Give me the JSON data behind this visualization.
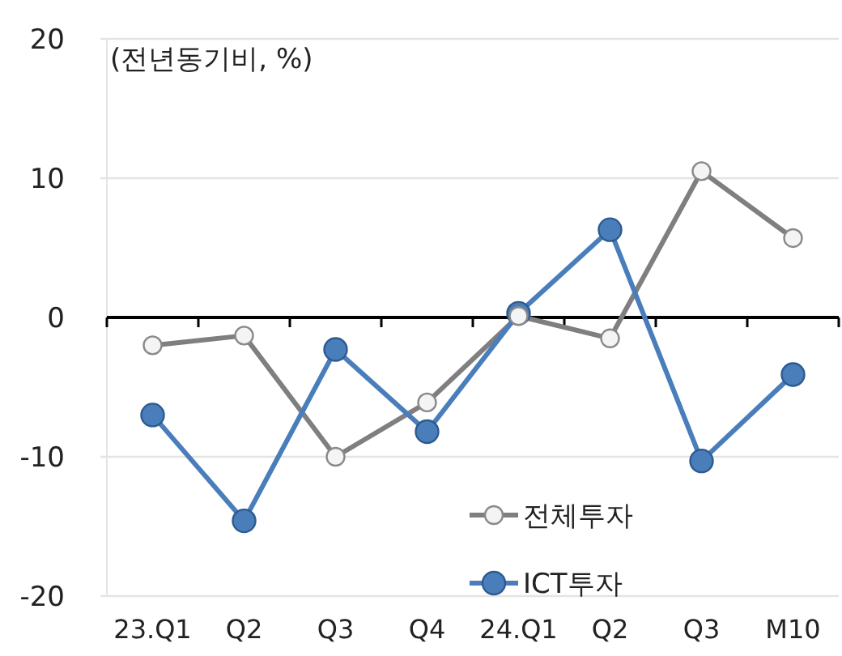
{
  "chart_data": {
    "type": "line",
    "title": "(전년동기비, %)",
    "categories": [
      "23.Q1",
      "Q2",
      "Q3",
      "Q4",
      "24.Q1",
      "Q2",
      "Q3",
      "M10"
    ],
    "series": [
      {
        "name": "전체투자",
        "color": "#7f7f7f",
        "values": [
          -2.0,
          -1.3,
          -10.0,
          -6.1,
          0.1,
          -1.5,
          10.5,
          5.7
        ]
      },
      {
        "name": "ICT투자",
        "color": "#4a7ebb",
        "values": [
          -7.0,
          -14.6,
          -2.3,
          -8.2,
          0.3,
          6.3,
          -10.3,
          -4.1
        ]
      }
    ],
    "ylim": [
      -20,
      20
    ],
    "yticks": [
      -20,
      -10,
      0,
      10,
      20
    ],
    "grid": "y",
    "legend": "bottom",
    "marker": "circle",
    "line_style": "solid"
  }
}
